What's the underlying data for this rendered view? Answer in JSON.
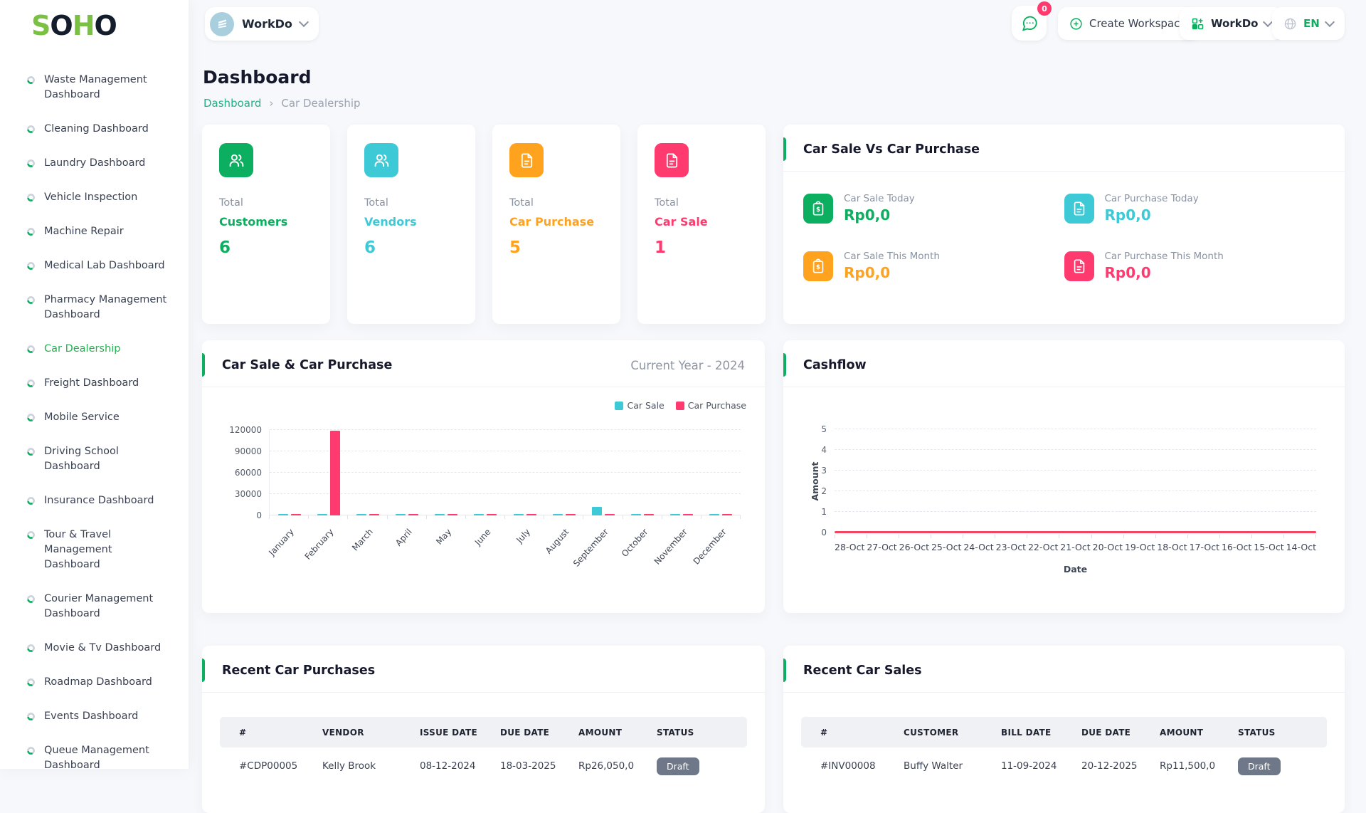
{
  "brand": {
    "letters": [
      {
        "t": "S",
        "c": "#7ac143"
      },
      {
        "t": "O",
        "c": "#141d2b"
      },
      {
        "t": "H",
        "c": "#7ac143"
      },
      {
        "t": "O",
        "c": "#141d2b"
      }
    ]
  },
  "topbar": {
    "workspace": {
      "label": "WorkDo"
    },
    "messages_count": "0",
    "create_workspace_label": "Create Workspace",
    "app_switcher_label": "WorkDo",
    "language": "EN"
  },
  "sidebar": {
    "items": [
      {
        "label": "Waste Management Dashboard",
        "active": false
      },
      {
        "label": "Cleaning Dashboard",
        "active": false
      },
      {
        "label": "Laundry Dashboard",
        "active": false
      },
      {
        "label": "Vehicle Inspection",
        "active": false
      },
      {
        "label": "Machine Repair",
        "active": false
      },
      {
        "label": "Medical Lab Dashboard",
        "active": false
      },
      {
        "label": "Pharmacy Management Dashboard",
        "active": false
      },
      {
        "label": "Car Dealership",
        "active": true
      },
      {
        "label": "Freight Dashboard",
        "active": false
      },
      {
        "label": "Mobile Service",
        "active": false
      },
      {
        "label": "Driving School Dashboard",
        "active": false
      },
      {
        "label": "Insurance Dashboard",
        "active": false
      },
      {
        "label": "Tour & Travel Management Dashboard",
        "active": false
      },
      {
        "label": "Courier Management Dashboard",
        "active": false
      },
      {
        "label": "Movie & Tv Dashboard",
        "active": false
      },
      {
        "label": "Roadmap Dashboard",
        "active": false
      },
      {
        "label": "Events Dashboard",
        "active": false
      },
      {
        "label": "Queue Management Dashboard",
        "active": false
      }
    ]
  },
  "page": {
    "title": "Dashboard",
    "breadcrumb": {
      "root": "Dashboard",
      "separator": "›",
      "current": "Car Dealership"
    }
  },
  "stat_cards": [
    {
      "prefix": "Total",
      "label": "Customers",
      "value": "6",
      "color": "#0caf60",
      "icon": "users-icon"
    },
    {
      "prefix": "Total",
      "label": "Vendors",
      "value": "6",
      "color": "#3ec9d6",
      "icon": "users-icon"
    },
    {
      "prefix": "Total",
      "label": "Car Purchase",
      "value": "5",
      "color": "#ffa21d",
      "icon": "invoice-icon"
    },
    {
      "prefix": "Total",
      "label": "Car Sale",
      "value": "1",
      "color": "#ff3a6e",
      "icon": "invoice-icon"
    }
  ],
  "sale_vs_purchase": {
    "title": "Car Sale Vs Car Purchase",
    "tiles": [
      {
        "label": "Car Sale Today",
        "value": "Rp0,0",
        "color": "#0caf60",
        "icon": "clipboard-dollar-icon"
      },
      {
        "label": "Car Purchase Today",
        "value": "Rp0,0",
        "color": "#3ec9d6",
        "icon": "file-icon"
      },
      {
        "label": "Car Sale This Month",
        "value": "Rp0,0",
        "color": "#ffa21d",
        "icon": "clipboard-dollar-icon"
      },
      {
        "label": "Car Purchase This Month",
        "value": "Rp0,0",
        "color": "#ff3a6e",
        "icon": "file-icon"
      }
    ]
  },
  "chart_data": [
    {
      "type": "bar",
      "title": "Car Sale & Car Purchase",
      "subtitle": "Current Year - 2024",
      "categories": [
        "January",
        "February",
        "March",
        "April",
        "May",
        "June",
        "July",
        "August",
        "September",
        "October",
        "November",
        "December"
      ],
      "series": [
        {
          "name": "Car Sale",
          "color": "#3ec9d6",
          "values": [
            2000,
            2000,
            2000,
            2000,
            2000,
            2000,
            2000,
            2000,
            12000,
            2000,
            2000,
            2000
          ]
        },
        {
          "name": "Car Purchase",
          "color": "#ff3a6e",
          "values": [
            2500,
            119500,
            2500,
            2500,
            2500,
            2500,
            2500,
            2500,
            2500,
            2500,
            2500,
            2500
          ]
        }
      ],
      "ylim": [
        0,
        120000
      ],
      "yticks": [
        0,
        30000,
        60000,
        90000,
        120000
      ],
      "grid": true,
      "legend_position": "top-right"
    },
    {
      "type": "line",
      "title": "Cashflow",
      "x": [
        "28-Oct",
        "27-Oct",
        "26-Oct",
        "25-Oct",
        "24-Oct",
        "23-Oct",
        "22-Oct",
        "21-Oct",
        "20-Oct",
        "19-Oct",
        "18-Oct",
        "17-Oct",
        "16-Oct",
        "15-Oct",
        "14-Oct"
      ],
      "series": [
        {
          "name": "Cashflow",
          "color": "#f2455f",
          "values": [
            0,
            0,
            0,
            0,
            0,
            0,
            0,
            0,
            0,
            0,
            0,
            0,
            0,
            0,
            0
          ]
        }
      ],
      "xlabel": "Date",
      "ylabel": "Amount",
      "ylim": [
        0,
        5
      ],
      "yticks": [
        0,
        1,
        2,
        3,
        4,
        5
      ],
      "grid": true
    }
  ],
  "tables": {
    "purchases": {
      "title": "Recent Car Purchases",
      "headers": [
        "#",
        "VENDOR",
        "ISSUE DATE",
        "DUE DATE",
        "AMOUNT",
        "STATUS"
      ],
      "rows": [
        [
          "#CDP00005",
          "Kelly Brook",
          "08-12-2024",
          "18-03-2025",
          "Rp26,050,0",
          "Draft"
        ]
      ]
    },
    "sales": {
      "title": "Recent Car Sales",
      "headers": [
        "#",
        "CUSTOMER",
        "BILL DATE",
        "DUE DATE",
        "AMOUNT",
        "STATUS"
      ],
      "rows": [
        [
          "#INV00008",
          "Buffy Walter",
          "11-09-2024",
          "20-12-2025",
          "Rp11,500,0",
          "Draft"
        ]
      ]
    }
  }
}
